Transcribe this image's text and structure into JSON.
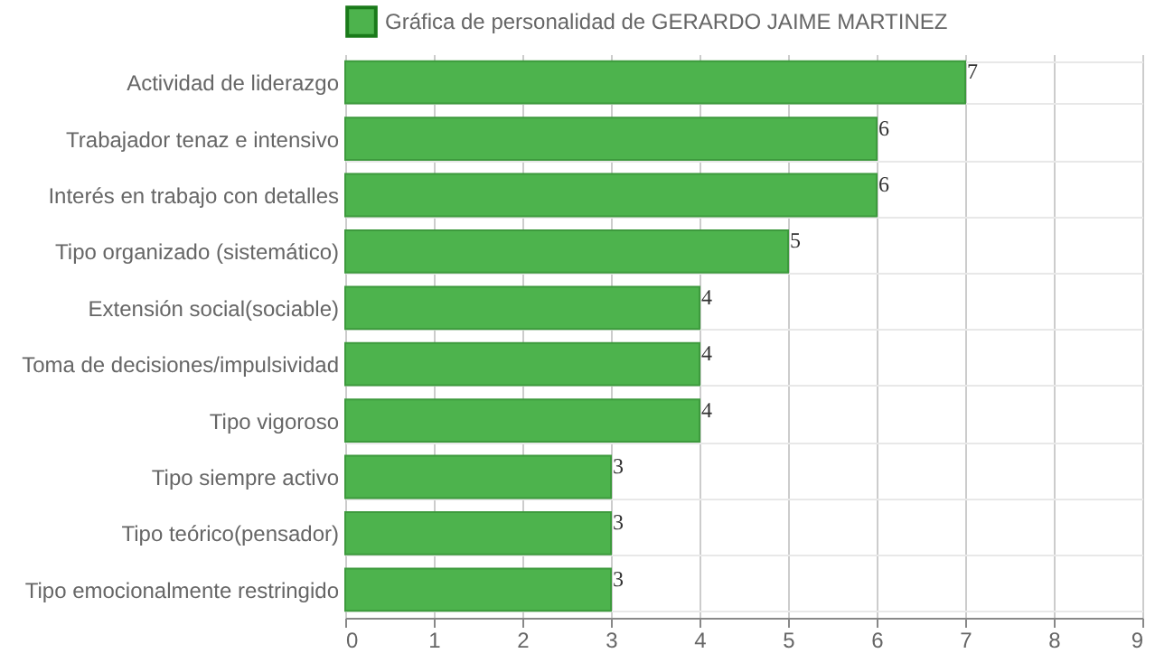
{
  "chart_data": {
    "type": "bar",
    "orientation": "horizontal",
    "categories": [
      "Actividad de liderazgo",
      "Trabajador tenaz e intensivo",
      "Interés en trabajo con detalles",
      "Tipo organizado (sistemático)",
      "Extensión social(sociable)",
      "Toma de decisiones/impulsividad",
      "Tipo vigoroso",
      "Tipo siempre activo",
      "Tipo teórico(pensador)",
      "Tipo emocionalmente restringido"
    ],
    "series": [
      {
        "name": "Gráfica de personalidad de GERARDO JAIME MARTINEZ",
        "color": "#4db34d",
        "values": [
          7,
          6,
          6,
          5,
          4,
          4,
          4,
          3,
          3,
          3
        ]
      }
    ],
    "xlim": [
      0,
      9
    ],
    "xticks": [
      0,
      1,
      2,
      3,
      4,
      5,
      6,
      7,
      8,
      9
    ],
    "grid": true,
    "legend": "top",
    "data_labels": true
  }
}
